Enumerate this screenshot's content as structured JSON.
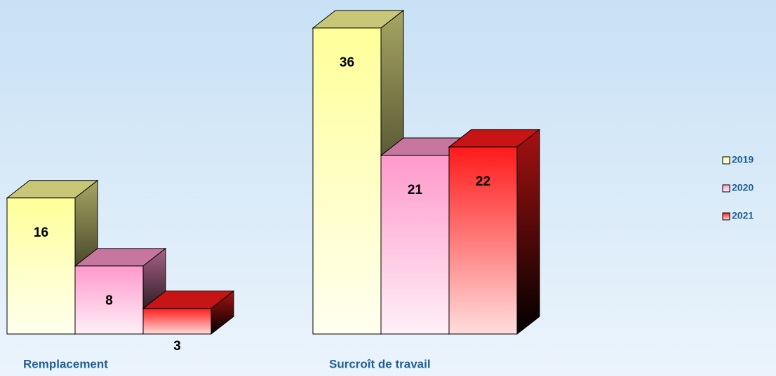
{
  "chart_data": {
    "type": "bar3d",
    "categories": [
      "Remplacement",
      "Surcroît de travail"
    ],
    "series": [
      {
        "name": "2019",
        "color": "#ffff99",
        "values": [
          16,
          36
        ]
      },
      {
        "name": "2020",
        "color": "#ff99cc",
        "values": [
          8,
          21
        ]
      },
      {
        "name": "2021",
        "color": "#ff1a1a",
        "values": [
          3,
          22
        ]
      }
    ]
  }
}
